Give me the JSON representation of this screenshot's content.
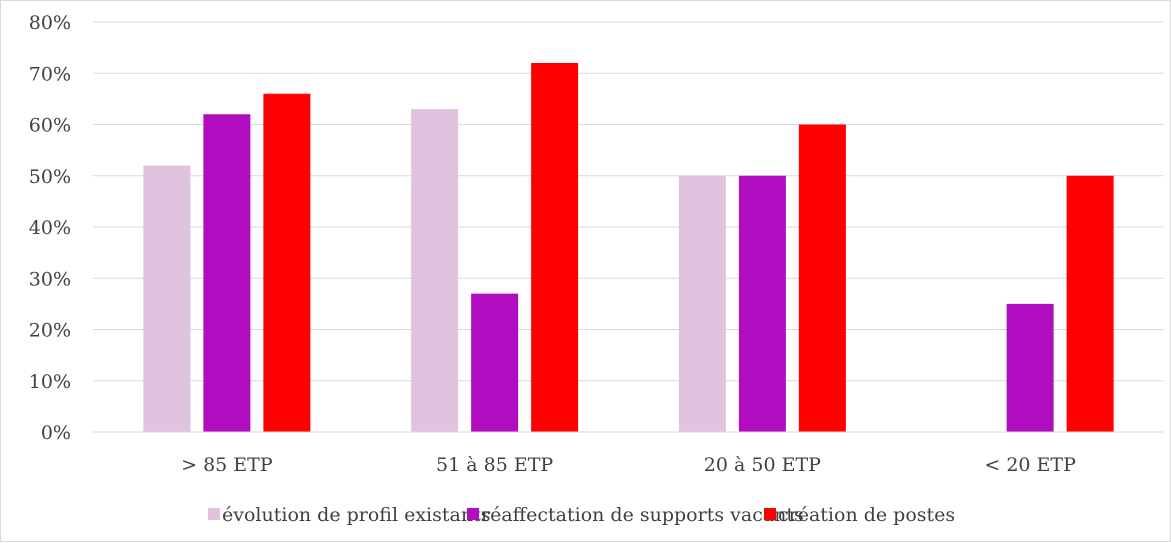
{
  "chart_data": {
    "type": "bar",
    "categories": [
      "> 85 ETP",
      "51 à 85 ETP",
      "20 à 50 ETP",
      "< 20 ETP"
    ],
    "series": [
      {
        "name": "évolution de profil existants",
        "color": "#e0c3de",
        "values": [
          52,
          63,
          50,
          0
        ]
      },
      {
        "name": "réaffectation de supports vacants",
        "color": "#b10cbf",
        "values": [
          62,
          27,
          50,
          25
        ]
      },
      {
        "name": "création de postes",
        "color": "#ff0000",
        "values": [
          66,
          72,
          60,
          50
        ]
      }
    ],
    "yticks": [
      "0%",
      "10%",
      "20%",
      "30%",
      "40%",
      "50%",
      "60%",
      "70%",
      "80%"
    ],
    "ylim": [
      0,
      80
    ],
    "unit": "%",
    "grid": true,
    "legend_position": "bottom",
    "title": "",
    "xlabel": "",
    "ylabel": ""
  }
}
